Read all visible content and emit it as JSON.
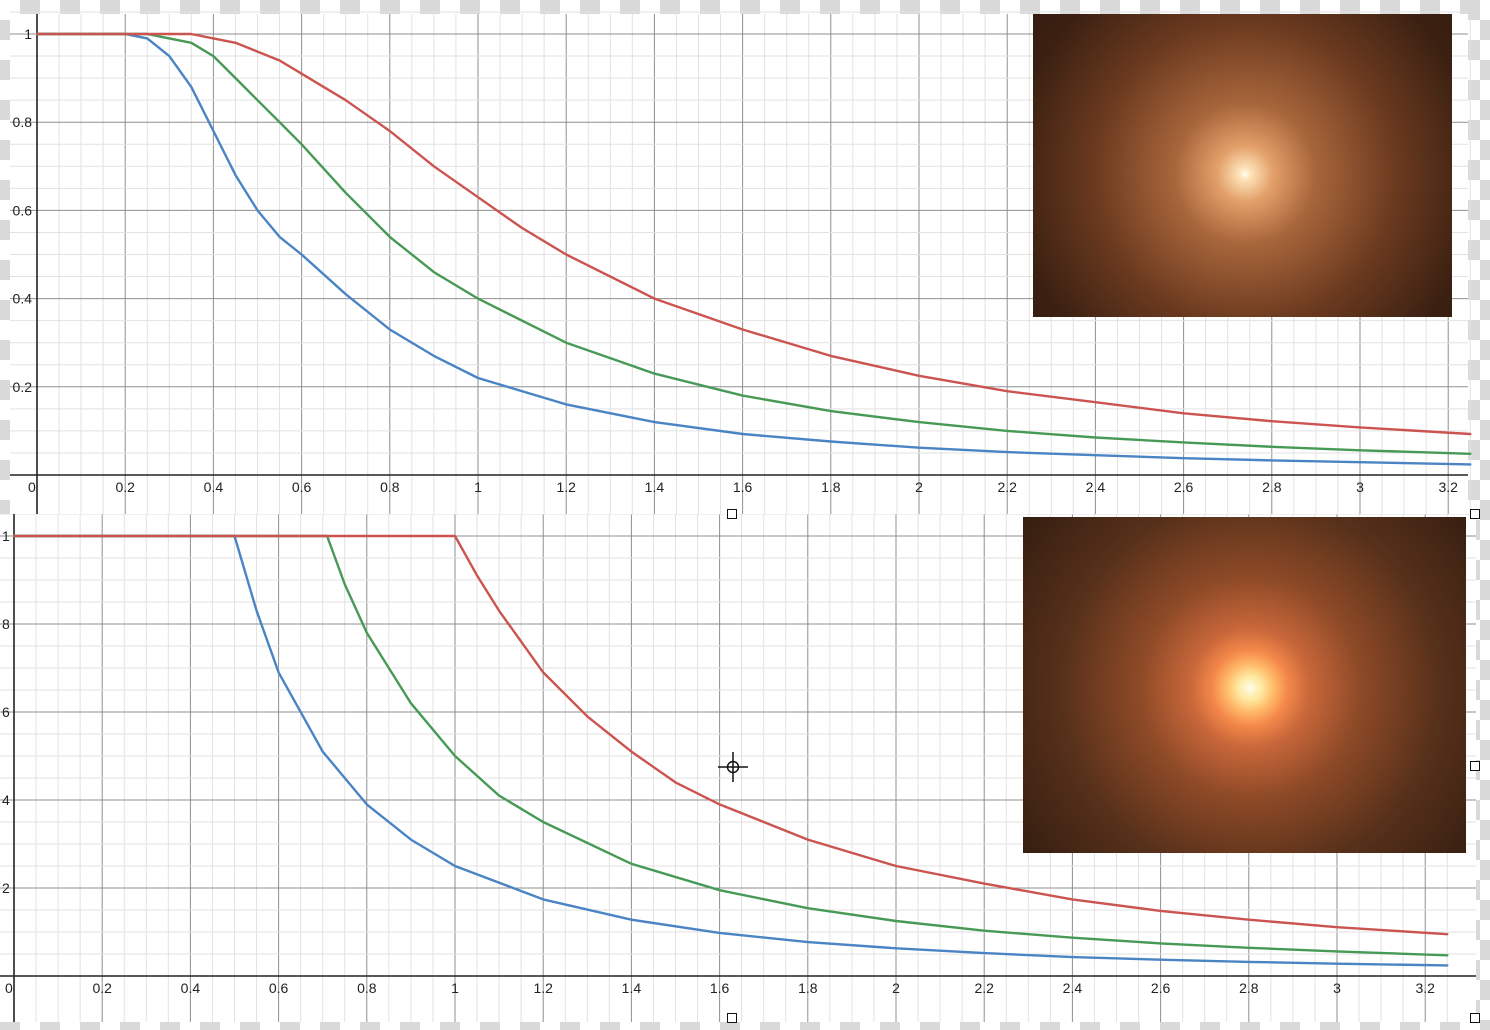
{
  "chart_data": [
    {
      "type": "line",
      "title": "",
      "xlabel": "",
      "ylabel": "",
      "xlim": [
        0,
        3.25
      ],
      "ylim": [
        0,
        1
      ],
      "grid": true,
      "x_ticks": [
        "0",
        "0.2",
        "0.4",
        "0.6",
        "0.8",
        "1",
        "1.2",
        "1.4",
        "1.6",
        "1.8",
        "2",
        "2.2",
        "2.4",
        "2.6",
        "2.8",
        "3",
        "3.2"
      ],
      "y_ticks": [
        "0.2",
        "0.4",
        "0.6",
        "0.8",
        "1"
      ],
      "series": [
        {
          "color": "#4a84c4",
          "points": [
            [
              0,
              1
            ],
            [
              0.2,
              1
            ],
            [
              0.25,
              0.99
            ],
            [
              0.3,
              0.95
            ],
            [
              0.35,
              0.88
            ],
            [
              0.4,
              0.78
            ],
            [
              0.45,
              0.68
            ],
            [
              0.5,
              0.6
            ],
            [
              0.55,
              0.54
            ],
            [
              0.6,
              0.5
            ],
            [
              0.7,
              0.41
            ],
            [
              0.8,
              0.33
            ],
            [
              0.9,
              0.27
            ],
            [
              1.0,
              0.22
            ],
            [
              1.2,
              0.16
            ],
            [
              1.4,
              0.12
            ],
            [
              1.6,
              0.093
            ],
            [
              1.8,
              0.076
            ],
            [
              2.0,
              0.062
            ],
            [
              2.2,
              0.052
            ],
            [
              2.4,
              0.045
            ],
            [
              2.6,
              0.038
            ],
            [
              2.8,
              0.033
            ],
            [
              3.0,
              0.029
            ],
            [
              3.25,
              0.024
            ]
          ]
        },
        {
          "color": "#479a55",
          "points": [
            [
              0,
              1
            ],
            [
              0.25,
              1
            ],
            [
              0.3,
              0.99
            ],
            [
              0.35,
              0.98
            ],
            [
              0.4,
              0.95
            ],
            [
              0.45,
              0.9
            ],
            [
              0.5,
              0.85
            ],
            [
              0.55,
              0.8
            ],
            [
              0.6,
              0.75
            ],
            [
              0.7,
              0.64
            ],
            [
              0.8,
              0.54
            ],
            [
              0.9,
              0.46
            ],
            [
              1.0,
              0.4
            ],
            [
              1.2,
              0.3
            ],
            [
              1.4,
              0.23
            ],
            [
              1.6,
              0.18
            ],
            [
              1.8,
              0.145
            ],
            [
              2.0,
              0.12
            ],
            [
              2.2,
              0.1
            ],
            [
              2.4,
              0.085
            ],
            [
              2.6,
              0.074
            ],
            [
              2.8,
              0.064
            ],
            [
              3.0,
              0.056
            ],
            [
              3.25,
              0.048
            ]
          ]
        },
        {
          "color": "#cc5450",
          "points": [
            [
              0,
              1
            ],
            [
              0.35,
              1
            ],
            [
              0.4,
              0.99
            ],
            [
              0.45,
              0.98
            ],
            [
              0.5,
              0.96
            ],
            [
              0.55,
              0.94
            ],
            [
              0.6,
              0.91
            ],
            [
              0.7,
              0.85
            ],
            [
              0.8,
              0.78
            ],
            [
              0.9,
              0.7
            ],
            [
              1.0,
              0.63
            ],
            [
              1.1,
              0.56
            ],
            [
              1.2,
              0.5
            ],
            [
              1.4,
              0.4
            ],
            [
              1.6,
              0.33
            ],
            [
              1.8,
              0.27
            ],
            [
              2.0,
              0.225
            ],
            [
              2.2,
              0.19
            ],
            [
              2.4,
              0.165
            ],
            [
              2.6,
              0.14
            ],
            [
              2.8,
              0.122
            ],
            [
              3.0,
              0.108
            ],
            [
              3.25,
              0.093
            ]
          ]
        }
      ]
    },
    {
      "type": "line",
      "title": "",
      "xlabel": "",
      "ylabel": "",
      "xlim": [
        0,
        3.25
      ],
      "ylim": [
        0,
        1
      ],
      "grid": true,
      "x_ticks": [
        "0",
        "0.2",
        "0.4",
        "0.6",
        "0.8",
        "1",
        "1.2",
        "1.4",
        "1.6",
        "1.8",
        "2",
        "2.2",
        "2.4",
        "2.6",
        "2.8",
        "3",
        "3.2"
      ],
      "y_ticks": [
        "2",
        "4",
        "6",
        "8",
        "1"
      ],
      "series": [
        {
          "color": "#4a84c4",
          "points": [
            [
              0,
              1
            ],
            [
              0.5,
              1
            ],
            [
              0.55,
              0.83
            ],
            [
              0.6,
              0.69
            ],
            [
              0.7,
              0.51
            ],
            [
              0.8,
              0.39
            ],
            [
              0.9,
              0.31
            ],
            [
              1.0,
              0.25
            ],
            [
              1.2,
              0.174
            ],
            [
              1.4,
              0.128
            ],
            [
              1.6,
              0.098
            ],
            [
              1.8,
              0.077
            ],
            [
              2.0,
              0.063
            ],
            [
              2.2,
              0.052
            ],
            [
              2.4,
              0.043
            ],
            [
              2.6,
              0.037
            ],
            [
              2.8,
              0.032
            ],
            [
              3.0,
              0.028
            ],
            [
              3.25,
              0.024
            ]
          ]
        },
        {
          "color": "#479a55",
          "points": [
            [
              0,
              1
            ],
            [
              0.71,
              1
            ],
            [
              0.75,
              0.89
            ],
            [
              0.8,
              0.78
            ],
            [
              0.9,
              0.62
            ],
            [
              1.0,
              0.5
            ],
            [
              1.1,
              0.41
            ],
            [
              1.2,
              0.35
            ],
            [
              1.4,
              0.255
            ],
            [
              1.6,
              0.195
            ],
            [
              1.8,
              0.154
            ],
            [
              2.0,
              0.125
            ],
            [
              2.2,
              0.103
            ],
            [
              2.4,
              0.087
            ],
            [
              2.6,
              0.074
            ],
            [
              2.8,
              0.064
            ],
            [
              3.0,
              0.056
            ],
            [
              3.25,
              0.047
            ]
          ]
        },
        {
          "color": "#cc5450",
          "points": [
            [
              0,
              1
            ],
            [
              1.0,
              1
            ],
            [
              1.05,
              0.91
            ],
            [
              1.1,
              0.83
            ],
            [
              1.2,
              0.69
            ],
            [
              1.3,
              0.59
            ],
            [
              1.4,
              0.51
            ],
            [
              1.5,
              0.44
            ],
            [
              1.6,
              0.39
            ],
            [
              1.8,
              0.31
            ],
            [
              2.0,
              0.25
            ],
            [
              2.2,
              0.21
            ],
            [
              2.4,
              0.174
            ],
            [
              2.6,
              0.148
            ],
            [
              2.8,
              0.128
            ],
            [
              3.0,
              0.111
            ],
            [
              3.25,
              0.095
            ]
          ]
        }
      ]
    }
  ],
  "insets": [
    {
      "name": "glow-preview-top",
      "color_center": "#fffef5",
      "color_edge": "#2a160c"
    },
    {
      "name": "glow-preview-bottom",
      "color_center": "#fffde6",
      "color_edge": "#2e1a0e"
    }
  ]
}
